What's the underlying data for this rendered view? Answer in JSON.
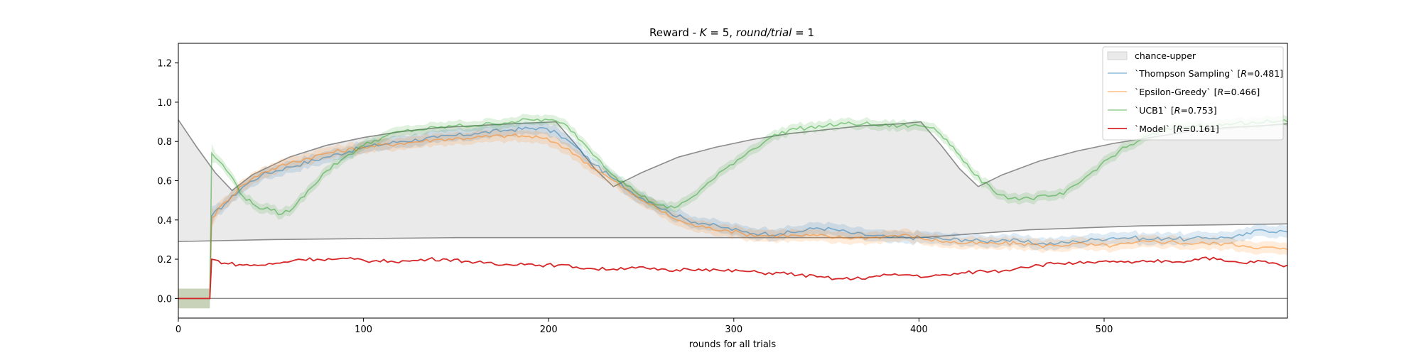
{
  "chart_data": {
    "type": "line",
    "title": "Reward - K = 5, round/trial = 1",
    "title_parts": {
      "prefix": "Reward - ",
      "K_symbol": "K",
      "K_eq": " = 5, ",
      "rt_symbol": "round/trial",
      "rt_eq": " = 1"
    },
    "xlabel": "rounds for all trials",
    "ylabel": "",
    "xlim": [
      0,
      599
    ],
    "ylim": [
      -0.1,
      1.3
    ],
    "xticks": [
      0,
      100,
      200,
      300,
      400,
      500
    ],
    "yticks": [
      0.0,
      0.2,
      0.4,
      0.6,
      0.8,
      1.0,
      1.2
    ],
    "xtick_labels": [
      "0",
      "100",
      "200",
      "300",
      "400",
      "500"
    ],
    "ytick_labels": [
      "0.0",
      "0.2",
      "0.4",
      "0.6",
      "0.8",
      "1.0",
      "1.2"
    ],
    "legend_placement": "upper right",
    "grid": false,
    "chance_band": {
      "name": "chance-upper",
      "color": "#d9d9d9",
      "upper": [
        [
          0,
          0.91
        ],
        [
          10,
          0.77
        ],
        [
          20,
          0.64
        ],
        [
          29,
          0.55
        ],
        [
          40,
          0.63
        ],
        [
          60,
          0.72
        ],
        [
          80,
          0.78
        ],
        [
          100,
          0.82
        ],
        [
          120,
          0.85
        ],
        [
          140,
          0.87
        ],
        [
          160,
          0.88
        ],
        [
          180,
          0.89
        ],
        [
          204,
          0.9
        ],
        [
          215,
          0.78
        ],
        [
          225,
          0.66
        ],
        [
          235,
          0.57
        ],
        [
          250,
          0.64
        ],
        [
          270,
          0.72
        ],
        [
          290,
          0.77
        ],
        [
          310,
          0.81
        ],
        [
          330,
          0.84
        ],
        [
          350,
          0.86
        ],
        [
          370,
          0.88
        ],
        [
          390,
          0.89
        ],
        [
          401,
          0.9
        ],
        [
          412,
          0.78
        ],
        [
          422,
          0.66
        ],
        [
          432,
          0.57
        ],
        [
          445,
          0.63
        ],
        [
          465,
          0.7
        ],
        [
          485,
          0.75
        ],
        [
          505,
          0.79
        ],
        [
          525,
          0.82
        ],
        [
          545,
          0.85
        ],
        [
          565,
          0.87
        ],
        [
          585,
          0.88
        ],
        [
          599,
          0.89
        ]
      ],
      "lower": [
        [
          0,
          0.29
        ],
        [
          50,
          0.3
        ],
        [
          100,
          0.305
        ],
        [
          150,
          0.31
        ],
        [
          200,
          0.31
        ],
        [
          250,
          0.31
        ],
        [
          300,
          0.31
        ],
        [
          350,
          0.31
        ],
        [
          401,
          0.31
        ],
        [
          430,
          0.33
        ],
        [
          460,
          0.35
        ],
        [
          490,
          0.36
        ],
        [
          520,
          0.37
        ],
        [
          560,
          0.375
        ],
        [
          599,
          0.38
        ]
      ]
    },
    "zero_line": 0.0,
    "series": [
      {
        "name": "`Thompson Sampling` [R=0.481]",
        "label_parts": {
          "prefix": "`Thompson Sampling` [",
          "R": "R",
          "suffix": "=0.481]"
        },
        "color": "#1f77b4",
        "alpha": 0.5,
        "band_halfwidth": 0.03,
        "points": [
          [
            0,
            0.0
          ],
          [
            17,
            0.0
          ],
          [
            18,
            0.42
          ],
          [
            25,
            0.48
          ],
          [
            35,
            0.57
          ],
          [
            45,
            0.63
          ],
          [
            60,
            0.67
          ],
          [
            80,
            0.72
          ],
          [
            100,
            0.77
          ],
          [
            120,
            0.8
          ],
          [
            140,
            0.82
          ],
          [
            160,
            0.84
          ],
          [
            180,
            0.86
          ],
          [
            195,
            0.87
          ],
          [
            205,
            0.84
          ],
          [
            215,
            0.77
          ],
          [
            225,
            0.68
          ],
          [
            235,
            0.61
          ],
          [
            245,
            0.54
          ],
          [
            255,
            0.49
          ],
          [
            265,
            0.44
          ],
          [
            275,
            0.4
          ],
          [
            285,
            0.38
          ],
          [
            295,
            0.36
          ],
          [
            305,
            0.34
          ],
          [
            315,
            0.33
          ],
          [
            325,
            0.33
          ],
          [
            335,
            0.34
          ],
          [
            345,
            0.36
          ],
          [
            355,
            0.35
          ],
          [
            365,
            0.33
          ],
          [
            375,
            0.32
          ],
          [
            385,
            0.31
          ],
          [
            395,
            0.31
          ],
          [
            405,
            0.31
          ],
          [
            415,
            0.3
          ],
          [
            425,
            0.3
          ],
          [
            435,
            0.29
          ],
          [
            445,
            0.3
          ],
          [
            455,
            0.29
          ],
          [
            465,
            0.28
          ],
          [
            475,
            0.28
          ],
          [
            485,
            0.29
          ],
          [
            495,
            0.3
          ],
          [
            505,
            0.31
          ],
          [
            515,
            0.31
          ],
          [
            525,
            0.3
          ],
          [
            535,
            0.31
          ],
          [
            545,
            0.3
          ],
          [
            555,
            0.31
          ],
          [
            565,
            0.31
          ],
          [
            575,
            0.32
          ],
          [
            585,
            0.35
          ],
          [
            599,
            0.34
          ]
        ]
      },
      {
        "name": "`Epsilon-Greedy` [R=0.466]",
        "label_parts": {
          "prefix": "`Epsilon-Greedy` [",
          "R": "R",
          "suffix": "=0.466]"
        },
        "color": "#ff7f0e",
        "alpha": 0.5,
        "band_halfwidth": 0.03,
        "points": [
          [
            0,
            0.0
          ],
          [
            17,
            0.0
          ],
          [
            18,
            0.41
          ],
          [
            25,
            0.49
          ],
          [
            35,
            0.58
          ],
          [
            45,
            0.64
          ],
          [
            60,
            0.69
          ],
          [
            80,
            0.74
          ],
          [
            100,
            0.77
          ],
          [
            120,
            0.79
          ],
          [
            140,
            0.81
          ],
          [
            160,
            0.82
          ],
          [
            180,
            0.83
          ],
          [
            195,
            0.82
          ],
          [
            205,
            0.79
          ],
          [
            215,
            0.73
          ],
          [
            225,
            0.66
          ],
          [
            235,
            0.6
          ],
          [
            245,
            0.53
          ],
          [
            255,
            0.48
          ],
          [
            265,
            0.42
          ],
          [
            275,
            0.38
          ],
          [
            285,
            0.36
          ],
          [
            295,
            0.35
          ],
          [
            305,
            0.33
          ],
          [
            315,
            0.32
          ],
          [
            325,
            0.32
          ],
          [
            335,
            0.32
          ],
          [
            345,
            0.32
          ],
          [
            355,
            0.31
          ],
          [
            365,
            0.31
          ],
          [
            375,
            0.31
          ],
          [
            385,
            0.32
          ],
          [
            395,
            0.32
          ],
          [
            405,
            0.3
          ],
          [
            415,
            0.29
          ],
          [
            425,
            0.28
          ],
          [
            435,
            0.28
          ],
          [
            445,
            0.28
          ],
          [
            455,
            0.28
          ],
          [
            465,
            0.27
          ],
          [
            475,
            0.27
          ],
          [
            485,
            0.28
          ],
          [
            495,
            0.27
          ],
          [
            505,
            0.27
          ],
          [
            515,
            0.28
          ],
          [
            525,
            0.29
          ],
          [
            535,
            0.29
          ],
          [
            545,
            0.28
          ],
          [
            555,
            0.28
          ],
          [
            565,
            0.28
          ],
          [
            575,
            0.27
          ],
          [
            585,
            0.26
          ],
          [
            599,
            0.25
          ]
        ]
      },
      {
        "name": "`UCB1` [R=0.753]",
        "label_parts": {
          "prefix": "`UCB1` [",
          "R": "R",
          "suffix": "=0.753]"
        },
        "color": "#2ca02c",
        "alpha": 0.5,
        "band_halfwidth": 0.025,
        "points": [
          [
            0,
            0.0
          ],
          [
            17,
            0.0
          ],
          [
            18,
            0.74
          ],
          [
            22,
            0.7
          ],
          [
            28,
            0.63
          ],
          [
            35,
            0.52
          ],
          [
            42,
            0.47
          ],
          [
            50,
            0.45
          ],
          [
            56,
            0.43
          ],
          [
            62,
            0.46
          ],
          [
            70,
            0.55
          ],
          [
            80,
            0.65
          ],
          [
            90,
            0.72
          ],
          [
            100,
            0.78
          ],
          [
            110,
            0.82
          ],
          [
            120,
            0.85
          ],
          [
            130,
            0.86
          ],
          [
            140,
            0.87
          ],
          [
            150,
            0.88
          ],
          [
            160,
            0.88
          ],
          [
            170,
            0.89
          ],
          [
            180,
            0.9
          ],
          [
            190,
            0.91
          ],
          [
            200,
            0.91
          ],
          [
            210,
            0.88
          ],
          [
            220,
            0.78
          ],
          [
            228,
            0.7
          ],
          [
            236,
            0.62
          ],
          [
            246,
            0.55
          ],
          [
            256,
            0.49
          ],
          [
            264,
            0.46
          ],
          [
            270,
            0.47
          ],
          [
            278,
            0.52
          ],
          [
            288,
            0.6
          ],
          [
            298,
            0.68
          ],
          [
            310,
            0.76
          ],
          [
            320,
            0.82
          ],
          [
            330,
            0.86
          ],
          [
            340,
            0.87
          ],
          [
            350,
            0.88
          ],
          [
            360,
            0.89
          ],
          [
            370,
            0.89
          ],
          [
            380,
            0.88
          ],
          [
            390,
            0.88
          ],
          [
            400,
            0.88
          ],
          [
            408,
            0.87
          ],
          [
            415,
            0.81
          ],
          [
            422,
            0.73
          ],
          [
            430,
            0.63
          ],
          [
            440,
            0.55
          ],
          [
            450,
            0.51
          ],
          [
            460,
            0.51
          ],
          [
            470,
            0.52
          ],
          [
            478,
            0.53
          ],
          [
            488,
            0.6
          ],
          [
            498,
            0.68
          ],
          [
            508,
            0.75
          ],
          [
            518,
            0.8
          ],
          [
            530,
            0.85
          ],
          [
            540,
            0.87
          ],
          [
            550,
            0.88
          ],
          [
            560,
            0.88
          ],
          [
            570,
            0.89
          ],
          [
            580,
            0.9
          ],
          [
            590,
            0.9
          ],
          [
            599,
            0.9
          ]
        ]
      },
      {
        "name": "`Model` [R=0.161]",
        "label_parts": {
          "prefix": "`Model` [",
          "R": "R",
          "suffix": "=0.161]"
        },
        "color": "#d62728",
        "alpha": 1.0,
        "band_halfwidth": 0,
        "points": [
          [
            0,
            0.0
          ],
          [
            17,
            0.0
          ],
          [
            18,
            0.2
          ],
          [
            25,
            0.18
          ],
          [
            35,
            0.17
          ],
          [
            45,
            0.17
          ],
          [
            55,
            0.18
          ],
          [
            65,
            0.2
          ],
          [
            75,
            0.2
          ],
          [
            85,
            0.2
          ],
          [
            95,
            0.2
          ],
          [
            105,
            0.19
          ],
          [
            115,
            0.19
          ],
          [
            125,
            0.19
          ],
          [
            135,
            0.2
          ],
          [
            145,
            0.2
          ],
          [
            155,
            0.19
          ],
          [
            165,
            0.18
          ],
          [
            175,
            0.17
          ],
          [
            185,
            0.18
          ],
          [
            195,
            0.17
          ],
          [
            205,
            0.17
          ],
          [
            215,
            0.16
          ],
          [
            225,
            0.15
          ],
          [
            235,
            0.15
          ],
          [
            245,
            0.16
          ],
          [
            255,
            0.15
          ],
          [
            265,
            0.14
          ],
          [
            275,
            0.15
          ],
          [
            285,
            0.15
          ],
          [
            295,
            0.14
          ],
          [
            305,
            0.14
          ],
          [
            315,
            0.13
          ],
          [
            325,
            0.13
          ],
          [
            335,
            0.12
          ],
          [
            345,
            0.11
          ],
          [
            355,
            0.1
          ],
          [
            365,
            0.1
          ],
          [
            375,
            0.11
          ],
          [
            385,
            0.12
          ],
          [
            395,
            0.12
          ],
          [
            405,
            0.11
          ],
          [
            415,
            0.12
          ],
          [
            425,
            0.13
          ],
          [
            435,
            0.14
          ],
          [
            445,
            0.14
          ],
          [
            455,
            0.16
          ],
          [
            465,
            0.17
          ],
          [
            475,
            0.18
          ],
          [
            485,
            0.18
          ],
          [
            495,
            0.18
          ],
          [
            505,
            0.19
          ],
          [
            515,
            0.18
          ],
          [
            525,
            0.19
          ],
          [
            535,
            0.19
          ],
          [
            545,
            0.19
          ],
          [
            555,
            0.21
          ],
          [
            565,
            0.19
          ],
          [
            575,
            0.18
          ],
          [
            585,
            0.19
          ],
          [
            595,
            0.17
          ],
          [
            599,
            0.17
          ]
        ]
      }
    ]
  }
}
